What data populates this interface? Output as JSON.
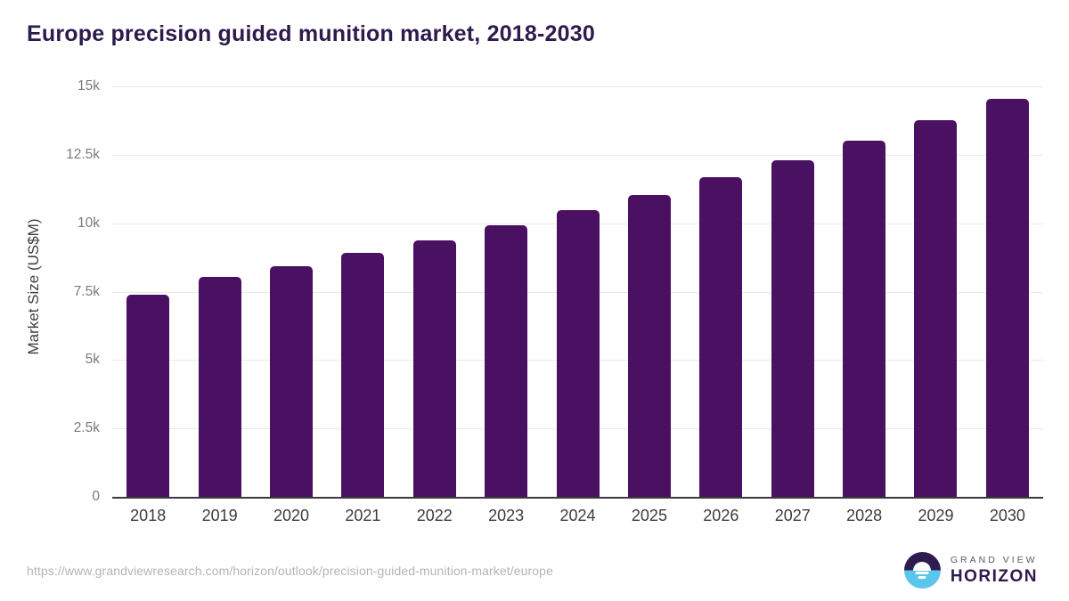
{
  "header": {
    "title": "Europe precision guided munition market, 2018-2030"
  },
  "chart_data": {
    "type": "bar",
    "title": "Europe precision guided munition market, 2018-2030",
    "categories": [
      "2018",
      "2019",
      "2020",
      "2021",
      "2022",
      "2023",
      "2024",
      "2025",
      "2026",
      "2027",
      "2028",
      "2029",
      "2030"
    ],
    "values": [
      7400,
      8030,
      8440,
      8900,
      9370,
      9940,
      10470,
      11040,
      11680,
      12310,
      13020,
      13770,
      14550
    ],
    "xlabel": "",
    "ylabel": "Market Size (US$M)",
    "ylim": [
      0,
      15000
    ],
    "yticks": [
      {
        "value": 0,
        "label": "0"
      },
      {
        "value": 2500,
        "label": "2.5k"
      },
      {
        "value": 5000,
        "label": "5k"
      },
      {
        "value": 7500,
        "label": "7.5k"
      },
      {
        "value": 10000,
        "label": "10k"
      },
      {
        "value": 12500,
        "label": "12.5k"
      },
      {
        "value": 15000,
        "label": "15k"
      }
    ],
    "grid": "horizontal",
    "legend_position": "none",
    "bar_color": "#4a1061"
  },
  "footer": {
    "source_url": "https://www.grandviewresearch.com/horizon/outlook/precision-guided-munition-market/europe",
    "logo": {
      "brand_top": "GRAND VIEW",
      "brand_bottom": "HORIZON"
    }
  },
  "colors": {
    "title_text": "#2e1a4d",
    "bar": "#4a1061",
    "axis_label": "#3f3f3f",
    "tick_label": "#7b7b7b",
    "gridline": "#e9e9e9",
    "axis_line": "#3a3a3a",
    "source_url_text": "#b4b4b4",
    "logo_dark": "#2f1c4e",
    "logo_blue": "#5ac6ee"
  }
}
